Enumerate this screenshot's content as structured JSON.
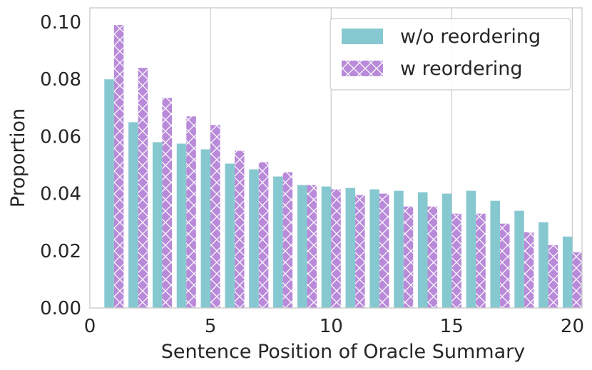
{
  "chart_data": {
    "type": "bar",
    "xlabel": "Sentence Position of Oracle Summary",
    "ylabel": "Proportion",
    "xlim": [
      0,
      20.4
    ],
    "ylim": [
      0,
      0.105
    ],
    "x_ticks": [
      0,
      5,
      10,
      15,
      20
    ],
    "y_ticks": [
      0.0,
      0.02,
      0.04,
      0.06,
      0.08,
      0.1
    ],
    "x_tick_labels": [
      "0",
      "5",
      "10",
      "15",
      "20"
    ],
    "y_tick_labels": [
      "0.00",
      "0.02",
      "0.04",
      "0.06",
      "0.08",
      "0.10"
    ],
    "grid": "vertical",
    "legend_position": "top-right",
    "x": [
      1,
      2,
      3,
      4,
      5,
      6,
      7,
      8,
      9,
      10,
      11,
      12,
      13,
      14,
      15,
      16,
      17,
      18,
      19,
      20
    ],
    "series": [
      {
        "name": "w/o reordering",
        "color": "#86c8d0",
        "hatch": "none",
        "values": [
          0.08,
          0.065,
          0.058,
          0.0575,
          0.0555,
          0.0505,
          0.0485,
          0.046,
          0.043,
          0.0425,
          0.042,
          0.0415,
          0.041,
          0.0405,
          0.04,
          0.041,
          0.0375,
          0.034,
          0.03,
          0.025
        ]
      },
      {
        "name": "w reordering",
        "color": "#b98ad9",
        "hatch": "x",
        "values": [
          0.099,
          0.084,
          0.0735,
          0.067,
          0.064,
          0.055,
          0.051,
          0.0475,
          0.043,
          0.0415,
          0.0395,
          0.04,
          0.0355,
          0.0355,
          0.033,
          0.033,
          0.0295,
          0.0265,
          0.022,
          0.0195
        ]
      }
    ]
  }
}
